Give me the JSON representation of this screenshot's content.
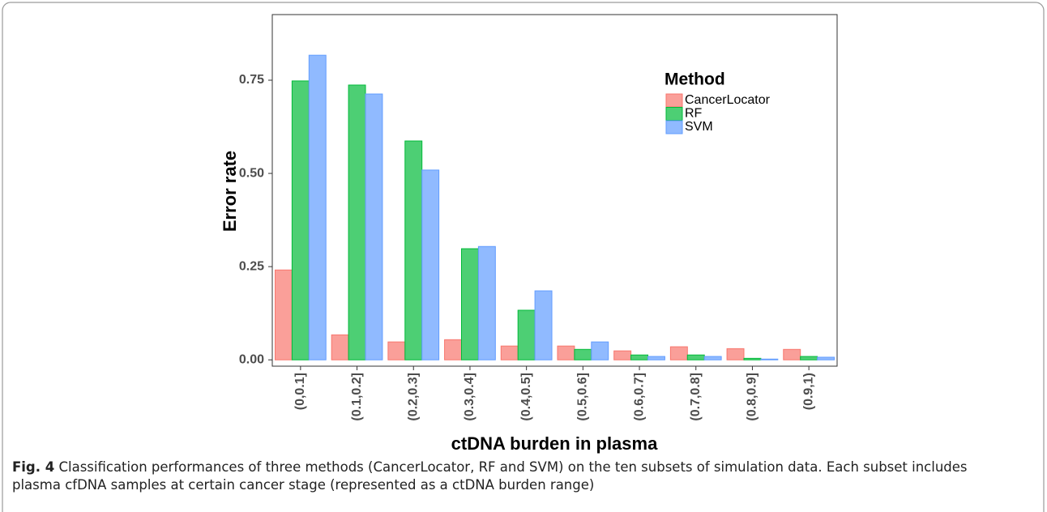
{
  "chart_data": {
    "type": "bar",
    "x_label": "ctDNA burden in plasma",
    "y_label": "Error rate",
    "categories": [
      "(0,0.1]",
      "(0.1,0.2]",
      "(0.2,0.3]",
      "(0.3,0.4]",
      "(0.4,0.5]",
      "(0.5,0.6]",
      "(0.6,0.7]",
      "(0.7,0.8]",
      "(0.8,0.9]",
      "(0.9,1)"
    ],
    "legend_title": "Method",
    "legend_position": "top-right",
    "series": [
      {
        "name": "CancerLocator",
        "color": "#F8766D",
        "values": [
          0.241,
          0.067,
          0.048,
          0.054,
          0.037,
          0.037,
          0.024,
          0.035,
          0.03,
          0.028
        ]
      },
      {
        "name": "RF",
        "color": "#00BA38",
        "values": [
          0.748,
          0.737,
          0.587,
          0.298,
          0.133,
          0.028,
          0.013,
          0.013,
          0.004,
          0.009
        ]
      },
      {
        "name": "SVM",
        "color": "#619CFF",
        "values": [
          0.817,
          0.713,
          0.509,
          0.304,
          0.185,
          0.048,
          0.009,
          0.009,
          0.002,
          0.007
        ]
      }
    ],
    "ylim": [
      -0.017,
      0.926
    ],
    "yticks": [
      {
        "value": 0,
        "label": "0.00"
      },
      {
        "value": 0.25,
        "label": "0.25"
      },
      {
        "value": 0.5,
        "label": "0.50"
      },
      {
        "value": 0.75,
        "label": "0.75"
      }
    ],
    "grid": false
  },
  "caption": {
    "label": "Fig. 4",
    "text": "Classification performances of three methods (CancerLocator, RF and SVM) on the ten subsets of simulation data. Each subset includes plasma cfDNA samples at certain cancer stage (represented as a ctDNA burden range)"
  }
}
